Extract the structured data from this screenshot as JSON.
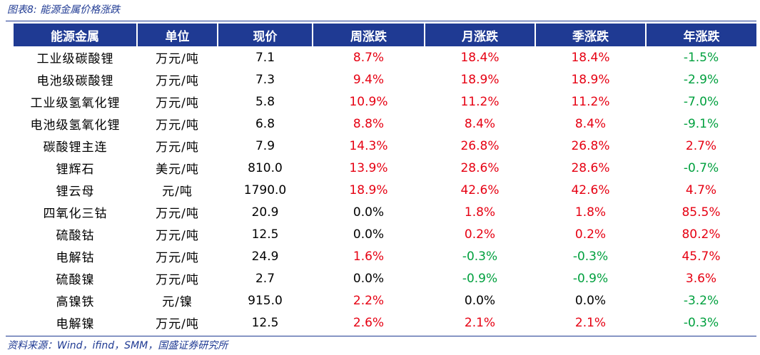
{
  "caption": "图表8:  能源金属价格涨跌",
  "source": "资料来源：Wind，ifind，SMM，国盛证券研究所",
  "colors": {
    "header_bg": "#1f3a93",
    "up": "#e60012",
    "down": "#00a03e"
  },
  "table": {
    "headers": [
      "能源金属",
      "单位",
      "现价",
      "周涨跌",
      "月涨跌",
      "季涨跌",
      "年涨跌"
    ],
    "rows": [
      {
        "name": "工业级碳酸锂",
        "unit": "万元/吨",
        "price": "7.1",
        "week": "8.7%",
        "month": "18.4%",
        "quarter": "18.4%",
        "year": "-1.5%"
      },
      {
        "name": "电池级碳酸锂",
        "unit": "万元/吨",
        "price": "7.3",
        "week": "9.4%",
        "month": "18.9%",
        "quarter": "18.9%",
        "year": "-2.9%"
      },
      {
        "name": "工业级氢氧化锂",
        "unit": "万元/吨",
        "price": "5.8",
        "week": "10.9%",
        "month": "11.2%",
        "quarter": "11.2%",
        "year": "-7.0%"
      },
      {
        "name": "电池级氢氧化锂",
        "unit": "万元/吨",
        "price": "6.8",
        "week": "8.8%",
        "month": "8.4%",
        "quarter": "8.4%",
        "year": "-9.1%"
      },
      {
        "name": "碳酸锂主连",
        "unit": "万元/吨",
        "price": "7.9",
        "week": "14.3%",
        "month": "26.8%",
        "quarter": "26.8%",
        "year": "2.7%"
      },
      {
        "name": "锂辉石",
        "unit": "美元/吨",
        "price": "810.0",
        "week": "13.9%",
        "month": "28.6%",
        "quarter": "28.6%",
        "year": "-0.7%"
      },
      {
        "name": "锂云母",
        "unit": "元/吨",
        "price": "1790.0",
        "week": "18.9%",
        "month": "42.6%",
        "quarter": "42.6%",
        "year": "4.7%"
      },
      {
        "name": "四氧化三钴",
        "unit": "万元/吨",
        "price": "20.9",
        "week": "0.0%",
        "month": "1.8%",
        "quarter": "1.8%",
        "year": "85.5%"
      },
      {
        "name": "硫酸钴",
        "unit": "万元/吨",
        "price": "12.5",
        "week": "0.0%",
        "month": "0.2%",
        "quarter": "0.2%",
        "year": "80.2%"
      },
      {
        "name": "电解钴",
        "unit": "万元/吨",
        "price": "24.9",
        "week": "1.6%",
        "month": "-0.3%",
        "quarter": "-0.3%",
        "year": "45.7%"
      },
      {
        "name": "硫酸镍",
        "unit": "万元/吨",
        "price": "2.7",
        "week": "0.0%",
        "month": "-0.9%",
        "quarter": "-0.9%",
        "year": "3.6%"
      },
      {
        "name": "高镍铁",
        "unit": "元/镍",
        "price": "915.0",
        "week": "2.2%",
        "month": "0.0%",
        "quarter": "0.0%",
        "year": "-3.2%"
      },
      {
        "name": "电解镍",
        "unit": "万元/吨",
        "price": "12.5",
        "week": "2.6%",
        "month": "2.1%",
        "quarter": "2.1%",
        "year": "-0.3%"
      }
    ]
  }
}
